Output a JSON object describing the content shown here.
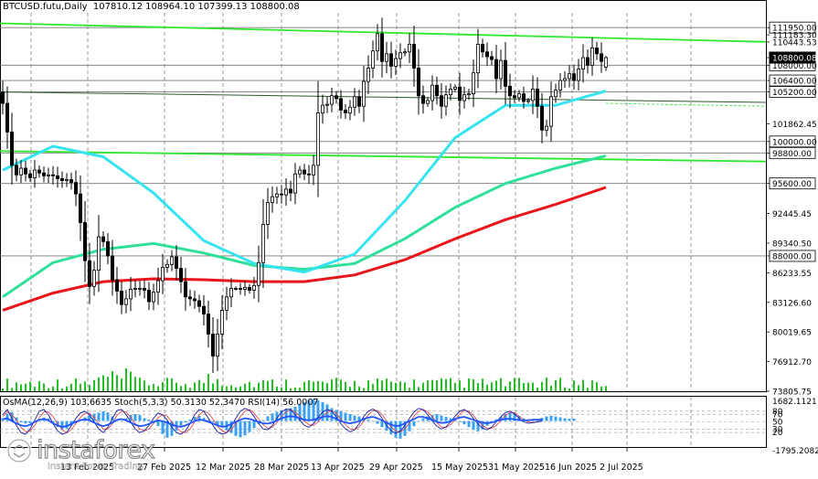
{
  "header": {
    "symbol_label": "BTCUSD.futu,Daily",
    "ohlc": "107810.12 108964.10 107399.13 108800.08"
  },
  "indicator_header": "OsMA(12,26,9) 103.6635  Stoch(5,3,3) 50.3130 52.3470  RSI(14) 56.0007",
  "logo": {
    "name": "instaforex",
    "tagline": "Instant Forex Trading"
  },
  "colors": {
    "background": "#ffffff",
    "grid": "#c8c8c8",
    "candle": "#000000",
    "ma_red": "#e8151b",
    "ma_teal": "#2fe09a",
    "ma_cyan": "#36e3f0",
    "level_green": "#2ee82e",
    "histogram": "#3aa0f0",
    "volume": "#22c022",
    "stoch_main": "#1a1aa0",
    "stoch_signal": "#e03a3a",
    "rsi": "#2255ff"
  },
  "chart_data": {
    "type": "candlestick",
    "title": "BTCUSD.futu,Daily",
    "ohlc_last": {
      "open": 107810.12,
      "high": 108964.1,
      "low": 107399.13,
      "close": 108800.08
    },
    "ylim": [
      73805,
      113500
    ],
    "x_tick_labels": [
      "13 Feb 2025",
      "27 Feb 2025",
      "12 Mar 2025",
      "28 Mar 2025",
      "13 Apr 2025",
      "29 Apr 2025",
      "15 May 2025",
      "31 May 2025",
      "16 Jun 2025",
      "2 Jul 2025"
    ],
    "y_tick_labels": [
      {
        "label": "111950.00",
        "value": 111950,
        "boxed": true
      },
      {
        "label": "111183.30",
        "value": 111183.3,
        "boxed": false
      },
      {
        "label": "110443.53",
        "value": 110443.53,
        "boxed": false
      },
      {
        "label": "108800.08",
        "value": 108800.08,
        "boxed": false
      },
      {
        "label": "108000.00",
        "value": 108000,
        "boxed": true
      },
      {
        "label": "106400.00",
        "value": 106400,
        "boxed": true
      },
      {
        "label": "105200.00",
        "value": 105200,
        "boxed": true
      },
      {
        "label": "101862.45",
        "value": 101862.45,
        "boxed": false
      },
      {
        "label": "100000.00",
        "value": 100000,
        "boxed": true
      },
      {
        "label": "98800.00",
        "value": 98800,
        "boxed": true
      },
      {
        "label": "95600.00",
        "value": 95600,
        "boxed": true
      },
      {
        "label": "92445.45",
        "value": 92445.45,
        "boxed": false
      },
      {
        "label": "89340.50",
        "value": 89340.5,
        "boxed": false
      },
      {
        "label": "88000.00",
        "value": 88000,
        "boxed": true
      },
      {
        "label": "86233.55",
        "value": 86233.55,
        "boxed": false
      },
      {
        "label": "83126.60",
        "value": 83126.6,
        "boxed": false
      },
      {
        "label": "80019.65",
        "value": 80019.65,
        "boxed": false
      },
      {
        "label": "76912.70",
        "value": 76912.7,
        "boxed": false
      },
      {
        "label": "73805.75",
        "value": 73805.75,
        "boxed": false
      }
    ],
    "horizontal_levels": [
      111950,
      108000,
      106400,
      105200,
      100000,
      98800,
      95600,
      88000
    ],
    "sloped_levels": [
      {
        "from": 112400,
        "to": 110450
      },
      {
        "from": 105200,
        "to": 104100
      },
      {
        "from": 99000,
        "to": 97900
      }
    ],
    "moving_averages": [
      {
        "color": "red",
        "values": [
          82300,
          84100,
          85300,
          85600,
          85500,
          85300,
          85300,
          86000,
          87600,
          89800,
          91800,
          93400,
          95200
        ]
      },
      {
        "color": "teal",
        "values": [
          83700,
          87300,
          88700,
          89300,
          88300,
          87000,
          86600,
          87200,
          89800,
          93100,
          95600,
          97200,
          98500
        ]
      },
      {
        "color": "cyan",
        "values": [
          97000,
          99500,
          98400,
          94600,
          89600,
          87200,
          86300,
          88200,
          93800,
          100400,
          103800,
          103800,
          105300
        ]
      }
    ],
    "closes": [
      104000,
      101000,
      97500,
      96500,
      97200,
      96600,
      96200,
      97000,
      96700,
      96400,
      96500,
      96400,
      96100,
      95900,
      96000,
      95700,
      94500,
      91500,
      87500,
      84800,
      86500,
      90000,
      89500,
      88000,
      85500,
      84300,
      82900,
      83500,
      84500,
      84600,
      84600,
      84400,
      83200,
      84200,
      85400,
      86800,
      87100,
      87900,
      86700,
      85300,
      83700,
      83500,
      83300,
      82700,
      81900,
      79800,
      77500,
      79800,
      82300,
      83700,
      84600,
      84600,
      84500,
      84700,
      84400,
      84900,
      87300,
      91300,
      93600,
      94200,
      94500,
      94400,
      95000,
      94600,
      96600,
      97000,
      96600,
      96500,
      97500,
      103000,
      103800,
      103900,
      104800,
      104500,
      103300,
      103000,
      103600,
      104700,
      103700,
      106300,
      107700,
      109500,
      111300,
      108400,
      109200,
      107900,
      108700,
      109300,
      109400,
      110200,
      107700,
      104800,
      104000,
      104300,
      105900,
      104800,
      103700,
      104900,
      105500,
      105700,
      104300,
      104900,
      105000,
      107200,
      110200,
      109400,
      108900,
      108600,
      106600,
      108500,
      105800,
      104800,
      104600,
      105000,
      104200,
      104300,
      105500,
      103700,
      101200,
      101600,
      104700,
      105400,
      106400,
      106600,
      107100,
      106400,
      107600,
      108800,
      108000,
      109800,
      109200,
      108400,
      108800
    ],
    "indicator_panel": {
      "osma": 103.6635,
      "stoch": [
        50.313,
        52.347
      ],
      "rsi": [
        58,
        60,
        52,
        46,
        40,
        38,
        42,
        50,
        56,
        58,
        54,
        46,
        40,
        36,
        38,
        44,
        50,
        55,
        57,
        54,
        48,
        42,
        38,
        42,
        48,
        56,
        58,
        54,
        48,
        42,
        38,
        40,
        44,
        50,
        54,
        52,
        48,
        42,
        38,
        36,
        40,
        46,
        52,
        56,
        55,
        50,
        45,
        40,
        36,
        38,
        44,
        50,
        56,
        60,
        58,
        54,
        50,
        46,
        45,
        48,
        54,
        60,
        64,
        66,
        64,
        60,
        56,
        54,
        56,
        60,
        64,
        66,
        64,
        58,
        52,
        48,
        46,
        48,
        52,
        58,
        62,
        64,
        60,
        54,
        48,
        42,
        38,
        40,
        46,
        52,
        58,
        64,
        64,
        60,
        55,
        50,
        47,
        48,
        52,
        58,
        62,
        64,
        60,
        56,
        52,
        48,
        46,
        48,
        52,
        56,
        58,
        59,
        57,
        55,
        54,
        55,
        56,
        56,
        56
      ],
      "right_labels": [
        "1682.1121",
        "80",
        "70",
        "50",
        "30",
        "20",
        "-1795.2082"
      ],
      "right_values": [
        1682.1121,
        80,
        70,
        50,
        30,
        20,
        -1795.2082
      ],
      "osma_hist": [
        120,
        320,
        380,
        160,
        -60,
        -110,
        -90,
        -60,
        80,
        150,
        120,
        -80,
        -260,
        -360,
        -320,
        -200,
        -90,
        40,
        160,
        260,
        320,
        360,
        420,
        370,
        200,
        60,
        -20,
        120,
        260,
        300,
        260,
        120,
        60,
        -60,
        -220,
        -560,
        -720,
        -640,
        -420,
        -200,
        -60,
        60,
        180,
        220,
        140,
        40,
        -40,
        -160,
        -260,
        -400,
        -520,
        -640,
        -700,
        -620,
        -480,
        -300,
        -120,
        40,
        200,
        330,
        400,
        460,
        500,
        560,
        620,
        720,
        820,
        900,
        950,
        900,
        820,
        720,
        560,
        480,
        420,
        360,
        300,
        240,
        200,
        140,
        60,
        -20,
        -120,
        -260,
        -420,
        -580,
        -720,
        -760,
        -640,
        -440,
        -220,
        20,
        120,
        200,
        260,
        300,
        240,
        180,
        120,
        60,
        -40,
        -140,
        -260,
        -380,
        -440,
        -360,
        -200,
        -60,
        80,
        180,
        300,
        360,
        340,
        220,
        120,
        60,
        40,
        80,
        140,
        200,
        230,
        200,
        160,
        120,
        100,
        104
      ],
      "stoch_main": [
        70,
        85,
        60,
        40,
        20,
        15,
        30,
        55,
        80,
        85,
        70,
        45,
        25,
        15,
        20,
        40,
        60,
        75,
        80,
        70,
        50,
        30,
        20,
        35,
        60,
        82,
        85,
        70,
        50,
        30,
        20,
        25,
        40,
        60,
        75,
        70,
        55,
        35,
        20,
        15,
        25,
        45,
        70,
        85,
        80,
        60,
        40,
        22,
        15,
        20,
        38,
        60,
        80,
        88,
        82,
        65,
        45,
        30,
        28,
        40,
        60,
        78,
        86,
        84,
        70,
        55,
        40,
        35,
        45,
        62,
        78,
        85,
        80,
        64,
        45,
        30,
        22,
        28,
        45,
        65,
        80,
        86,
        78,
        60,
        40,
        25,
        18,
        24,
        40,
        60,
        78,
        88,
        84,
        70,
        52,
        38,
        30,
        36,
        50,
        66,
        80,
        85,
        76,
        60,
        44,
        32,
        28,
        36,
        50,
        64,
        76,
        80,
        72,
        60,
        50,
        46,
        48,
        50,
        52
      ],
      "stoch_signal": [
        65,
        78,
        70,
        55,
        35,
        22,
        25,
        40,
        62,
        78,
        78,
        65,
        45,
        28,
        20,
        28,
        45,
        62,
        74,
        74,
        62,
        45,
        30,
        30,
        45,
        68,
        80,
        78,
        63,
        45,
        30,
        25,
        30,
        45,
        62,
        70,
        66,
        50,
        35,
        22,
        20,
        30,
        50,
        70,
        80,
        75,
        58,
        38,
        25,
        20,
        28,
        45,
        65,
        80,
        85,
        75,
        58,
        42,
        32,
        35,
        48,
        65,
        78,
        84,
        78,
        66,
        52,
        42,
        40,
        50,
        65,
        78,
        82,
        74,
        58,
        42,
        30,
        28,
        36,
        52,
        70,
        82,
        82,
        70,
        52,
        36,
        24,
        22,
        30,
        48,
        66,
        80,
        85,
        78,
        64,
        48,
        36,
        34,
        42,
        56,
        72,
        82,
        80,
        68,
        52,
        40,
        32,
        32,
        40,
        54,
        68,
        76,
        76,
        66,
        56,
        50,
        48,
        50,
        52
      ]
    }
  }
}
